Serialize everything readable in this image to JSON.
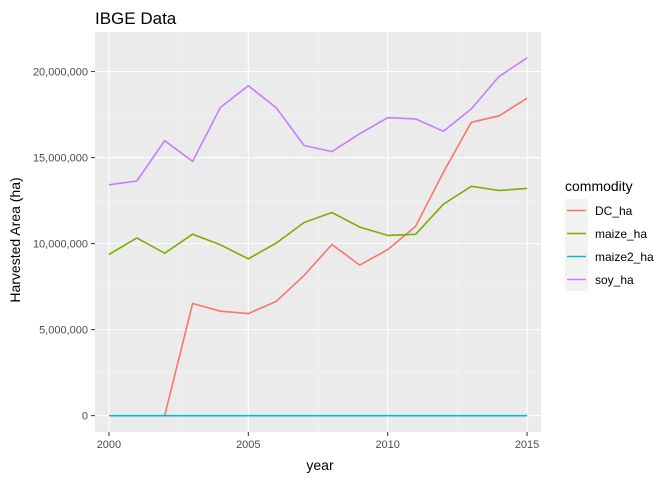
{
  "chart_data": {
    "type": "line",
    "title": "IBGE Data",
    "xlabel": "year",
    "ylabel": "Harvested Area (ha)",
    "xlim": [
      1999.5,
      2015.5
    ],
    "ylim": [
      -950000,
      22300000
    ],
    "x_ticks": [
      2000,
      2005,
      2010,
      2015
    ],
    "x_tick_labels": [
      "2000",
      "2005",
      "2010",
      "2015"
    ],
    "y_ticks": [
      0,
      5000000,
      10000000,
      15000000,
      20000000
    ],
    "y_tick_labels": [
      "0",
      "5,000,000",
      "10,000,000",
      "15,000,000",
      "20,000,000"
    ],
    "grid": true,
    "legend": {
      "title": "commodity",
      "position": "right"
    },
    "x": [
      2000,
      2001,
      2002,
      2003,
      2004,
      2005,
      2006,
      2007,
      2008,
      2009,
      2010,
      2011,
      2012,
      2013,
      2014,
      2015
    ],
    "series": [
      {
        "name": "DC_ha",
        "color": "#F8766D",
        "values": [
          null,
          null,
          0,
          6520000,
          6070000,
          5930000,
          6640000,
          8150000,
          9950000,
          8750000,
          9650000,
          11000000,
          14150000,
          17050000,
          17430000,
          18450000
        ]
      },
      {
        "name": "maize_ha",
        "color": "#7CAE00",
        "values": [
          9370000,
          10330000,
          9440000,
          10550000,
          9930000,
          9120000,
          10030000,
          11230000,
          11810000,
          10960000,
          10480000,
          10540000,
          12290000,
          13330000,
          13090000,
          13210000
        ]
      },
      {
        "name": "maize2_ha",
        "color": "#00BFC4",
        "values": [
          0,
          0,
          0,
          0,
          0,
          0,
          0,
          0,
          0,
          0,
          0,
          0,
          0,
          0,
          0,
          0
        ]
      },
      {
        "name": "soy_ha",
        "color": "#C77CFF",
        "values": [
          13420000,
          13640000,
          15980000,
          14780000,
          17920000,
          19180000,
          17900000,
          15700000,
          15350000,
          16390000,
          17320000,
          17250000,
          16530000,
          17830000,
          19720000,
          20800000
        ]
      }
    ]
  }
}
